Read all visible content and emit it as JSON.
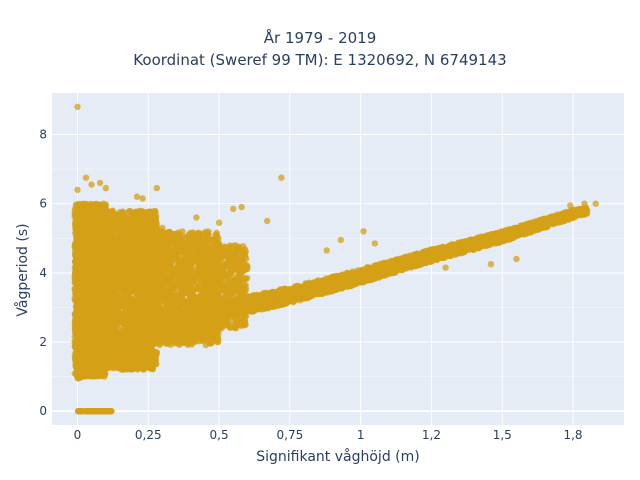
{
  "chart_data": {
    "type": "scatter",
    "title_lines": [
      "År 1979 - 2019",
      "Koordinat (Sweref 99 TM): E 1320692, N 6749143"
    ],
    "xlabel": "Signifikant våghöjd (m)",
    "ylabel": "Vågperiod (s)",
    "xlim": [
      -0.09,
      1.93
    ],
    "ylim": [
      -0.4,
      9.2
    ],
    "xticks": [
      0,
      0.25,
      0.5,
      0.75,
      1,
      1.25,
      1.5,
      1.75
    ],
    "xtick_labels": [
      "0",
      "0,25",
      "0,5",
      "0,75",
      "1",
      "1,2",
      "1,5",
      "1,8"
    ],
    "yticks": [
      0,
      2,
      4,
      6,
      8
    ],
    "ytick_labels": [
      "0",
      "2",
      "4",
      "6",
      "8"
    ],
    "grid": true,
    "legend": "none",
    "marker_color": "#D4A017",
    "plot_bg": "#E5ECF6",
    "note": "Dense cloud of tens of thousands of points; representative points listed.",
    "points": [
      [
        0.0,
        8.8
      ],
      [
        0.03,
        6.75
      ],
      [
        0.05,
        6.55
      ],
      [
        0.08,
        6.6
      ],
      [
        0.1,
        6.45
      ],
      [
        0.0,
        6.4
      ],
      [
        0.72,
        6.75
      ],
      [
        0.28,
        6.45
      ],
      [
        0.21,
        6.2
      ],
      [
        0.23,
        6.15
      ],
      [
        1.83,
        6.0
      ],
      [
        1.79,
        6.0
      ],
      [
        1.74,
        5.95
      ],
      [
        0.67,
        5.5
      ],
      [
        0.58,
        5.9
      ],
      [
        0.55,
        5.85
      ],
      [
        0.42,
        5.6
      ],
      [
        0.5,
        5.45
      ],
      [
        0.56,
        4.45
      ],
      [
        0.45,
        4.3
      ],
      [
        0.4,
        4.0
      ],
      [
        0.36,
        4.1
      ],
      [
        1.01,
        5.2
      ],
      [
        0.93,
        4.95
      ],
      [
        1.05,
        4.85
      ],
      [
        0.88,
        4.65
      ],
      [
        1.55,
        4.4
      ],
      [
        1.46,
        4.25
      ],
      [
        1.3,
        4.15
      ],
      [
        1.18,
        4.25
      ],
      [
        0.5,
        4.85
      ],
      [
        0.3,
        5.3
      ],
      [
        0.15,
        4.9
      ],
      [
        0.12,
        4.7
      ]
    ],
    "clusters": [
      {
        "x0": 0.0,
        "x1": 0.12,
        "y0": 0.0,
        "y1": 0.0,
        "n": 60
      },
      {
        "x0": -0.01,
        "x1": 0.1,
        "y0": 1.0,
        "y1": 6.0,
        "n": 2500
      },
      {
        "x0": 0.06,
        "x1": 0.28,
        "y0": 1.2,
        "y1": 5.8,
        "n": 2500
      },
      {
        "x0": 0.25,
        "x1": 0.5,
        "y0": 1.9,
        "y1": 5.2,
        "n": 1500
      },
      {
        "x0": 0.45,
        "x1": 0.6,
        "y0": 2.4,
        "y1": 4.8,
        "n": 500
      }
    ],
    "trend_band": {
      "knots_x": [
        0.0,
        0.25,
        0.5,
        0.75,
        1.0,
        1.25,
        1.5,
        1.75,
        1.85
      ],
      "knots_y": [
        1.15,
        2.15,
        2.9,
        3.35,
        3.9,
        4.5,
        5.05,
        5.7,
        5.9
      ],
      "width": [
        0.45,
        0.5,
        0.5,
        0.45,
        0.4,
        0.35,
        0.3,
        0.25,
        0.15
      ],
      "x_start": 0.0,
      "x_end": 1.8,
      "n": 5000
    }
  }
}
